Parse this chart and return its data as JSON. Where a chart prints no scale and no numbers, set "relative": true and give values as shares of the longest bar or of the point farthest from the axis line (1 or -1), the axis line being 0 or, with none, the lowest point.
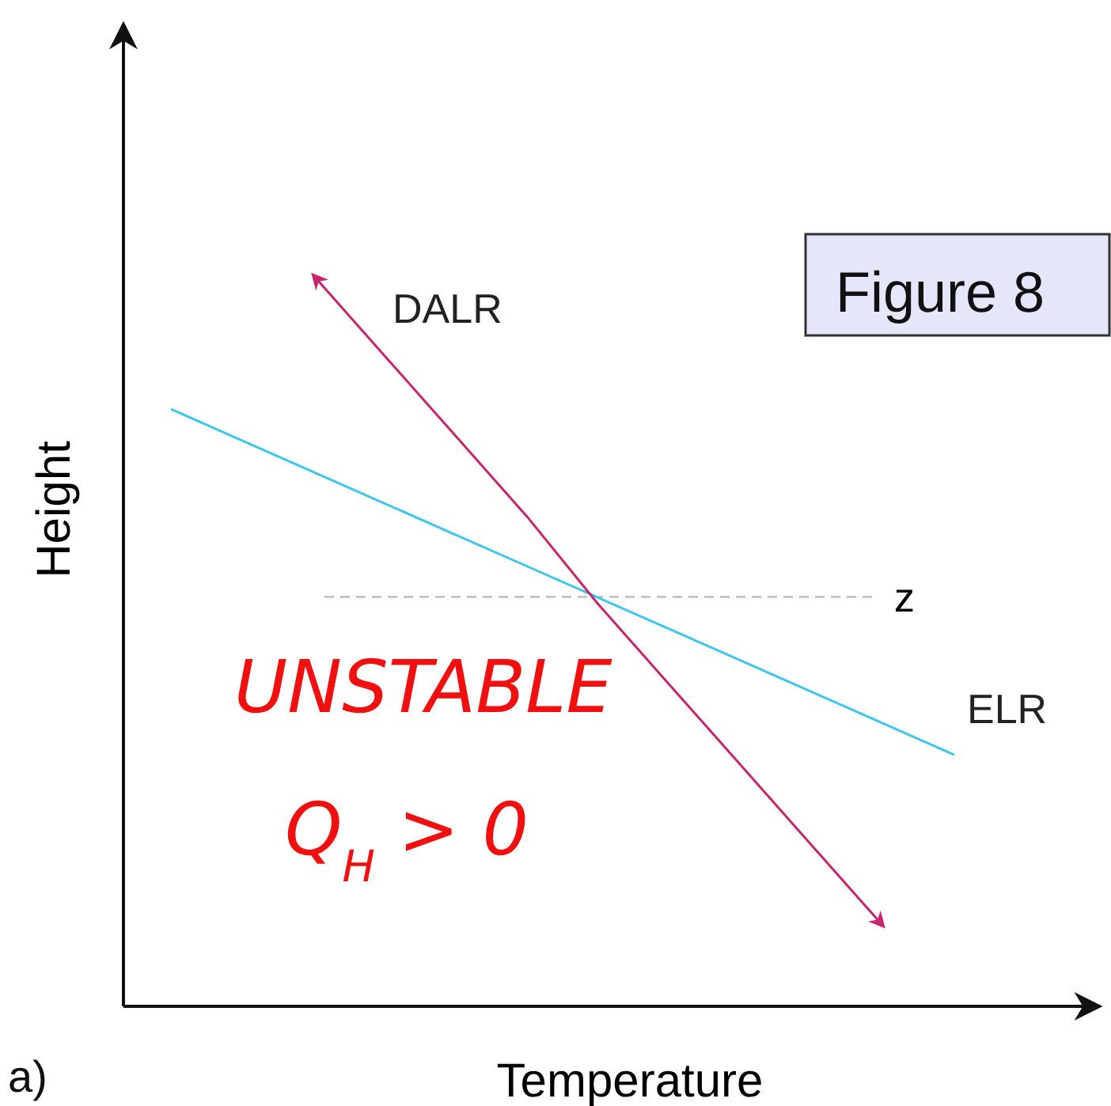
{
  "chart_data": {
    "type": "line",
    "relative": true,
    "xlabel": "Temperature",
    "ylabel": "Height",
    "categories": [
      null,
      null,
      null,
      null,
      null,
      null,
      null,
      null,
      null,
      null,
      null,
      null,
      null
    ],
    "series": [
      {
        "name": "ELR",
        "color": "#3ec6ee",
        "values": [
          0.817,
          0.774,
          0.731,
          0.688,
          0.645,
          0.602,
          0.559,
          0.516,
          0.473,
          0.43,
          0.387,
          0.344,
          null
        ]
      },
      {
        "name": "DALR",
        "color": "#c8256f",
        "values": [
          null,
          null,
          1,
          0.89,
          0.78,
          0.67,
          0.55,
          0.44,
          0.33,
          0.22,
          0.11,
          null,
          null
        ]
      }
    ],
    "ref_lines": [
      {
        "axis": "y",
        "value": 0.56,
        "label": "z",
        "color": "#b0b0b0",
        "line_style": "dashed"
      }
    ],
    "annotations": [
      "UNSTABLE",
      "Q$_{H}$ > 0",
      "Figure 8",
      "a)"
    ],
    "marker": "none",
    "line_style": "solid"
  }
}
